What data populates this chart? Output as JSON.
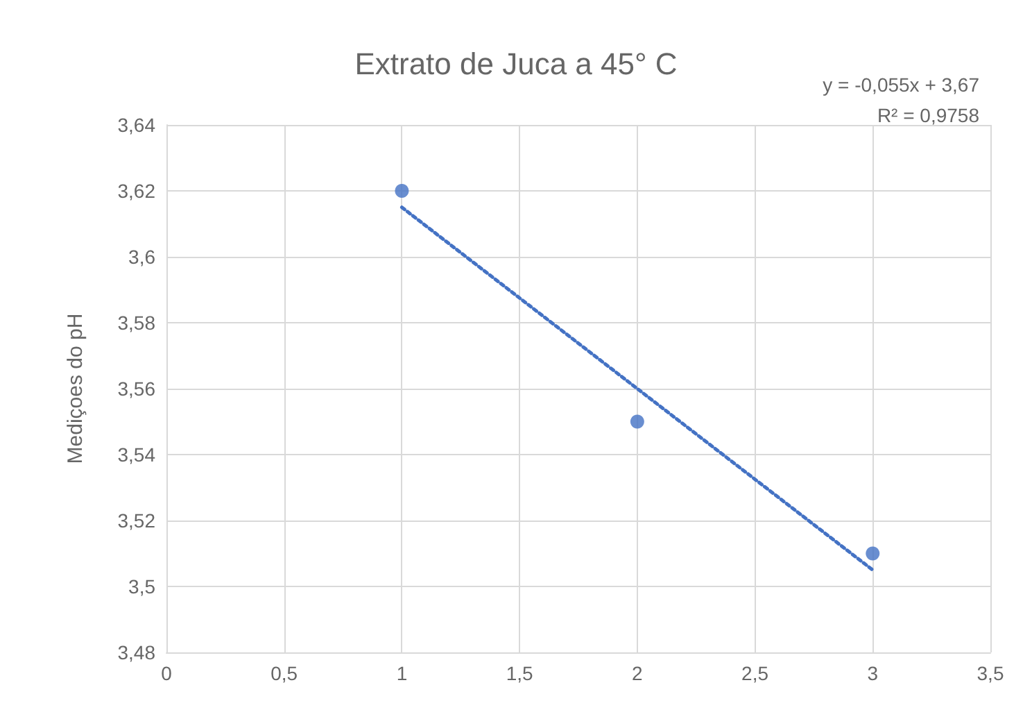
{
  "chart_data": {
    "type": "scatter",
    "title": "Extrato de Juca a 45° C",
    "ylabel": "Mediçoes do pH",
    "x": [
      1,
      2,
      3
    ],
    "series": [
      {
        "color": "#4472c4",
        "values": [
          3.62,
          3.55,
          3.51
        ],
        "marker": "circle"
      },
      {
        "type": "line",
        "color": "#4472c4",
        "x": [
          1,
          3
        ],
        "values": [
          3.615,
          3.505
        ],
        "marker": "none",
        "line_style": "dotted"
      }
    ],
    "annotations": [
      "y = -0,055x + 3,67",
      "R² = 0,9758"
    ],
    "xlim": [
      0,
      3.5
    ],
    "xticks": [
      0,
      {
        "value": 0.5,
        "label": "0,5"
      },
      1,
      {
        "value": 1.5,
        "label": "1,5"
      },
      2,
      {
        "value": 2.5,
        "label": "2,5"
      },
      3,
      {
        "value": 3.5,
        "label": "3,5"
      }
    ],
    "ylim": [
      3.48,
      3.64
    ],
    "yticks": [
      {
        "value": 3.48,
        "label": "3,48"
      },
      {
        "value": 3.5,
        "label": "3,5"
      },
      {
        "value": 3.52,
        "label": "3,52"
      },
      {
        "value": 3.54,
        "label": "3,54"
      },
      {
        "value": 3.56,
        "label": "3,56"
      },
      {
        "value": 3.58,
        "label": "3,58"
      },
      {
        "value": 3.6,
        "label": "3,6"
      },
      {
        "value": 3.62,
        "label": "3,62"
      },
      {
        "value": 3.64,
        "label": "3,64"
      }
    ],
    "grid": true
  }
}
